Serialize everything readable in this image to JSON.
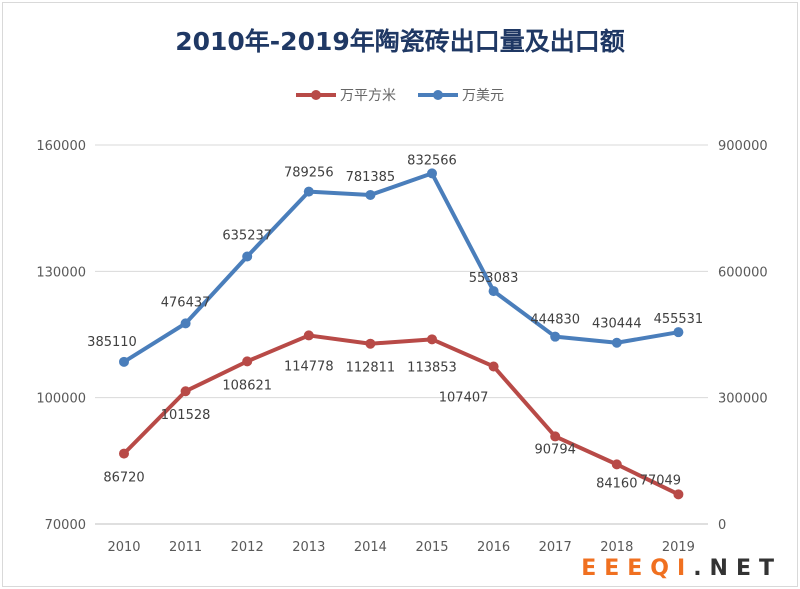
{
  "chart_data": {
    "type": "line",
    "title": "2010年-2019年陶瓷砖出口量及出口额",
    "categories": [
      "2010",
      "2011",
      "2012",
      "2013",
      "2014",
      "2015",
      "2016",
      "2017",
      "2018",
      "2019"
    ],
    "series": [
      {
        "name": "万平方米",
        "axis": "left",
        "color": "#b84a47",
        "values": [
          86720,
          101528,
          108621,
          114778,
          112811,
          113853,
          107407,
          90794,
          84160,
          77049
        ]
      },
      {
        "name": "万美元",
        "axis": "right",
        "color": "#4a7ebb",
        "values": [
          385110,
          476437,
          635237,
          789256,
          781385,
          832566,
          553083,
          444830,
          430444,
          455531
        ]
      }
    ],
    "left_axis": {
      "ylim": [
        70000,
        160000
      ],
      "ticks": [
        "70000",
        "100000",
        "130000",
        "160000"
      ]
    },
    "right_axis": {
      "ylim": [
        0,
        900000
      ],
      "ticks": [
        "0",
        "300000",
        "600000",
        "900000"
      ]
    },
    "grid": true,
    "legend_position": "top-center"
  },
  "watermark": {
    "part1": "EEEQI",
    "part2": ".NET"
  }
}
